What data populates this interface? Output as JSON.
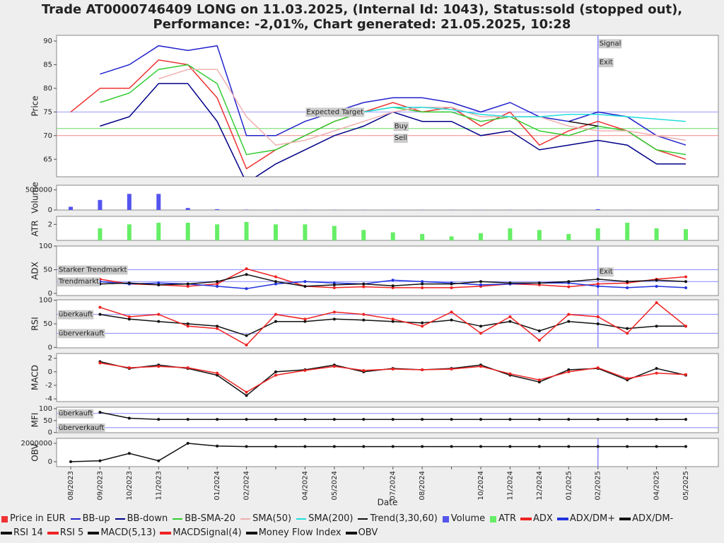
{
  "chart_data": [
    {
      "type": "line",
      "title": "Trade AT0000746409 LONG on 11.03.2025, (Internal Id: 1043), Status:sold (stopped out),",
      "subtitle": "Performance: -2,01%, Chart generated: 21.05.2025, 10:28",
      "xlabel": "Date",
      "ylabel": "Price",
      "categories": [
        "08/2023",
        "09/2023",
        "10/2023",
        "11/2023",
        null,
        "01/2024",
        "02/2024",
        null,
        "04/2024",
        "05/2024",
        null,
        "07/2024",
        "08/2024",
        null,
        "10/2024",
        "11/2024",
        "12/2024",
        "01/2025",
        "02/2025",
        null,
        "04/2025",
        "05/2025"
      ],
      "ylim": [
        61.3,
        91.2
      ],
      "yticks": [
        65,
        70,
        75,
        80,
        85,
        90
      ],
      "hlines": [
        {
          "value": 75,
          "color": "#9999ff"
        },
        {
          "value": 71.5,
          "color": "#66dd66"
        },
        {
          "value": 70,
          "color": "#ee8888"
        }
      ],
      "vlines": [
        {
          "x": "02/2025",
          "color": "#8888ff"
        }
      ],
      "annotations": [
        {
          "text": "Expected Target",
          "x": "04/2024",
          "y": 75
        },
        {
          "text": "Buy",
          "x": "07/2024",
          "y": 72
        },
        {
          "text": "Sell",
          "x": "07/2024",
          "y": 69.5
        },
        {
          "text": "Signal",
          "x": "02/2025",
          "y": 89.5
        },
        {
          "text": "Exit",
          "x": "02/2025",
          "y": 85.5
        }
      ],
      "series": [
        {
          "name": "Price in EUR",
          "color": "#ee3333",
          "marker": "square",
          "values": [
            75,
            80,
            80,
            86,
            85,
            78,
            63,
            67,
            70,
            73,
            75,
            77,
            75,
            76,
            72,
            75,
            68,
            71,
            73,
            71,
            67,
            65
          ]
        },
        {
          "name": "BB-up",
          "color": "#2222cc",
          "values": [
            null,
            83,
            85,
            89,
            88,
            89,
            70,
            70,
            73,
            75,
            77,
            78,
            78,
            77,
            75,
            77,
            74,
            73,
            75,
            74,
            70,
            68
          ]
        },
        {
          "name": "BB-down",
          "color": "#000088",
          "values": [
            null,
            72,
            74,
            81,
            81,
            73,
            60,
            64,
            67,
            70,
            72,
            75,
            73,
            73,
            70,
            71,
            67,
            68,
            69,
            68,
            64,
            64
          ]
        },
        {
          "name": "BB-SMA-20",
          "color": "#33cc33",
          "values": [
            null,
            77,
            79,
            84,
            85,
            81,
            66,
            67,
            70,
            73,
            75,
            76,
            75,
            75,
            73,
            74,
            71,
            70,
            72,
            71,
            67,
            66
          ]
        },
        {
          "name": "SMA(50)",
          "color": "#f0b0b0",
          "values": [
            null,
            null,
            null,
            82,
            84,
            84,
            74,
            68,
            69,
            71,
            73,
            75,
            76,
            76,
            74,
            74,
            74,
            72,
            71,
            71,
            70,
            69
          ]
        },
        {
          "name": "SMA(200)",
          "color": "#22dddd",
          "values": [
            null,
            null,
            null,
            null,
            null,
            null,
            null,
            null,
            null,
            null,
            75,
            76,
            76,
            75.5,
            74.5,
            74,
            74,
            74.5,
            74.5,
            74,
            73.5,
            73
          ]
        },
        {
          "name": "Trend(3,30,60)",
          "color": "#111111",
          "values": [
            null,
            null,
            null,
            null,
            null,
            null,
            null,
            null,
            null,
            null,
            null,
            null,
            null,
            null,
            null,
            null,
            null,
            73,
            72,
            null,
            null,
            null
          ]
        }
      ]
    },
    {
      "type": "bar",
      "ylabel": "Volume",
      "ylim": [
        0,
        615000
      ],
      "yticks": [
        0,
        500000
      ],
      "series": [
        {
          "name": "Volume",
          "color": "#5555ee",
          "marker": "square",
          "values": [
            80000,
            250000,
            400000,
            400000,
            50000,
            20000,
            10000,
            5000,
            5000,
            5000,
            3000,
            3000,
            3000,
            3000,
            3000,
            3000,
            3000,
            3000,
            20000,
            3000,
            3000,
            3000
          ]
        }
      ]
    },
    {
      "type": "bar",
      "ylabel": "ATR",
      "ylim": [
        0,
        3
      ],
      "yticks": [
        2
      ],
      "series": [
        {
          "name": "ATR",
          "color": "#66ee66",
          "marker": "square",
          "values": [
            null,
            1.5,
            2,
            2.2,
            2.2,
            2,
            2.3,
            2,
            2,
            1.8,
            1.3,
            1,
            0.8,
            0.5,
            0.9,
            1.5,
            1.3,
            0.8,
            1.5,
            2.2,
            1.5,
            1.4
          ]
        }
      ]
    },
    {
      "type": "line",
      "ylabel": "ADX",
      "ylim": [
        -4.5,
        100
      ],
      "yticks": [
        0,
        50,
        100
      ],
      "hlines": [
        {
          "value": 50,
          "color": "#8888ff"
        },
        {
          "value": 25,
          "color": "#8888ff"
        }
      ],
      "vlines": [
        {
          "x": "02/2025",
          "color": "#8888ff"
        }
      ],
      "annotations": [
        {
          "text": "Starker Trendmarkt",
          "y": 50
        },
        {
          "text": "Trendmarkt",
          "y": 25
        },
        {
          "text": "Exit",
          "x": "02/2025",
          "y": 46
        }
      ],
      "series": [
        {
          "name": "ADX",
          "color": "#ee2222",
          "marker": "dot",
          "values": [
            null,
            30,
            20,
            18,
            15,
            20,
            52,
            35,
            15,
            12,
            14,
            12,
            12,
            12,
            15,
            20,
            18,
            14,
            20,
            22,
            30,
            35
          ]
        },
        {
          "name": "ADX/DM+",
          "color": "#2233dd",
          "marker": "dot",
          "values": [
            null,
            25,
            20,
            22,
            20,
            15,
            10,
            20,
            25,
            22,
            20,
            28,
            25,
            22,
            18,
            20,
            22,
            22,
            15,
            12,
            15,
            12
          ]
        },
        {
          "name": "ADX/DM-",
          "color": "#111111",
          "marker": "dot",
          "values": [
            null,
            20,
            22,
            18,
            20,
            25,
            40,
            25,
            15,
            18,
            20,
            16,
            20,
            20,
            25,
            22,
            22,
            25,
            30,
            25,
            28,
            25
          ]
        }
      ]
    },
    {
      "type": "line",
      "ylabel": "RSI",
      "ylim": [
        -1,
        101
      ],
      "yticks": [
        0,
        50,
        100
      ],
      "hlines": [
        {
          "value": 70,
          "color": "#8888ff"
        },
        {
          "value": 30,
          "color": "#8888ff"
        }
      ],
      "vlines": [
        {
          "x": "02/2025",
          "color": "#8888ff"
        }
      ],
      "annotations": [
        {
          "text": "überkauft",
          "y": 70
        },
        {
          "text": "überverkauft",
          "y": 30
        }
      ],
      "series": [
        {
          "name": "RSI 14",
          "color": "#111111",
          "marker": "dot",
          "values": [
            null,
            70,
            60,
            55,
            50,
            45,
            25,
            55,
            55,
            60,
            58,
            55,
            52,
            58,
            45,
            55,
            35,
            55,
            50,
            40,
            45,
            45
          ]
        },
        {
          "name": "RSI 5",
          "color": "#ee2222",
          "marker": "dot",
          "values": [
            null,
            85,
            65,
            70,
            45,
            40,
            5,
            70,
            60,
            75,
            70,
            60,
            45,
            75,
            30,
            65,
            15,
            70,
            65,
            30,
            95,
            45
          ]
        }
      ]
    },
    {
      "type": "line",
      "ylabel": "MACD",
      "ylim": [
        -4.4,
        2.7
      ],
      "yticks": [
        -4,
        -2,
        0,
        2
      ],
      "series": [
        {
          "name": "MACD(5,13)",
          "color": "#111111",
          "marker": "dot",
          "values": [
            null,
            1.5,
            0.5,
            1,
            0.5,
            -0.5,
            -3.5,
            0,
            0.3,
            1,
            0,
            0.5,
            0.3,
            0.5,
            1,
            -0.5,
            -1.5,
            0.3,
            0.5,
            -1.2,
            0.5,
            -0.5
          ]
        },
        {
          "name": "MACDSignal(4)",
          "color": "#ee2222",
          "marker": "dot",
          "values": [
            null,
            1.3,
            0.6,
            0.8,
            0.6,
            -0.2,
            -3,
            -0.5,
            0.2,
            0.8,
            0.2,
            0.4,
            0.3,
            0.4,
            0.8,
            -0.3,
            -1.2,
            0,
            0.6,
            -1,
            -0.2,
            -0.4
          ]
        }
      ]
    },
    {
      "type": "line",
      "ylabel": "MFI",
      "ylim": [
        -1,
        106
      ],
      "yticks": [
        0,
        50,
        100
      ],
      "hlines": [
        {
          "value": 80,
          "color": "#8888ff"
        },
        {
          "value": 20,
          "color": "#8888ff"
        }
      ],
      "annotations": [
        {
          "text": "überkauft",
          "y": 80
        },
        {
          "text": "überverkauft",
          "y": 20
        }
      ],
      "series": [
        {
          "name": "Money Flow Index",
          "color": "#111111",
          "marker": "dot",
          "values": [
            null,
            85,
            60,
            55,
            55,
            55,
            55,
            55,
            55,
            55,
            55,
            55,
            55,
            55,
            55,
            55,
            55,
            55,
            55,
            55,
            55,
            55
          ]
        }
      ]
    },
    {
      "type": "line",
      "ylabel": "OBV",
      "ylim": [
        -540000,
        2540000
      ],
      "yticks": [
        0,
        2000000
      ],
      "vlines": [
        {
          "x": "02/2025",
          "color": "#8888ff"
        }
      ],
      "series": [
        {
          "name": "OBV",
          "color": "#111111",
          "marker": "dot",
          "values": [
            0,
            100000,
            900000,
            100000,
            2000000,
            1700000,
            1650000,
            1650000,
            1650000,
            1650000,
            1650000,
            1650000,
            1650000,
            1650000,
            1650000,
            1650000,
            1650000,
            1650000,
            1650000,
            1650000,
            1650000,
            1650000
          ]
        }
      ]
    }
  ]
}
